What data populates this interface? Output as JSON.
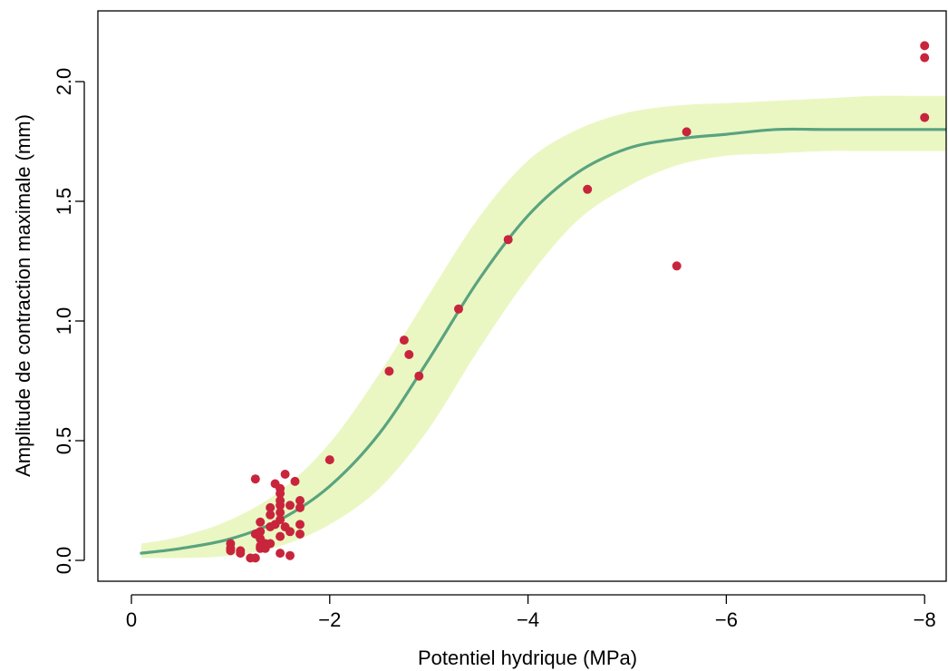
{
  "chart_data": {
    "type": "scatter",
    "title": "",
    "xlabel": "Potentiel hydrique (MPa)",
    "ylabel": "Amplitude de contraction maximale (mm)",
    "xlim": [
      0.3,
      -8.25
    ],
    "ylim": [
      -0.08,
      2.3
    ],
    "x_reversed": true,
    "x_ticks": [
      0,
      -2,
      -4,
      -6,
      -8
    ],
    "x_tick_labels": [
      "0",
      "−2",
      "−4",
      "−6",
      "−8"
    ],
    "y_ticks": [
      0.0,
      0.5,
      1.0,
      1.5,
      2.0
    ],
    "y_tick_labels": [
      "0.0",
      "0.5",
      "1.0",
      "1.5",
      "2.0"
    ],
    "grid": false,
    "legend": "none",
    "colors": {
      "points": "#c8243c",
      "curve": "#5aa37f",
      "band": "#eaf7c3",
      "axis": "#000000"
    },
    "points": [
      {
        "x": -1.0,
        "y": 0.07
      },
      {
        "x": -1.0,
        "y": 0.05
      },
      {
        "x": -1.0,
        "y": 0.04
      },
      {
        "x": -1.1,
        "y": 0.04
      },
      {
        "x": -1.1,
        "y": 0.03
      },
      {
        "x": -1.2,
        "y": 0.01
      },
      {
        "x": -1.25,
        "y": 0.01
      },
      {
        "x": -1.25,
        "y": 0.34
      },
      {
        "x": -1.25,
        "y": 0.11
      },
      {
        "x": -1.3,
        "y": 0.16
      },
      {
        "x": -1.3,
        "y": 0.12
      },
      {
        "x": -1.3,
        "y": 0.09
      },
      {
        "x": -1.3,
        "y": 0.06
      },
      {
        "x": -1.3,
        "y": 0.05
      },
      {
        "x": -1.35,
        "y": 0.07
      },
      {
        "x": -1.35,
        "y": 0.05
      },
      {
        "x": -1.4,
        "y": 0.22
      },
      {
        "x": -1.4,
        "y": 0.19
      },
      {
        "x": -1.4,
        "y": 0.14
      },
      {
        "x": -1.4,
        "y": 0.07
      },
      {
        "x": -1.45,
        "y": 0.32
      },
      {
        "x": -1.45,
        "y": 0.15
      },
      {
        "x": -1.5,
        "y": 0.3
      },
      {
        "x": -1.5,
        "y": 0.28
      },
      {
        "x": -1.5,
        "y": 0.25
      },
      {
        "x": -1.5,
        "y": 0.23
      },
      {
        "x": -1.5,
        "y": 0.2
      },
      {
        "x": -1.5,
        "y": 0.17
      },
      {
        "x": -1.5,
        "y": 0.1
      },
      {
        "x": -1.5,
        "y": 0.03
      },
      {
        "x": -1.55,
        "y": 0.36
      },
      {
        "x": -1.55,
        "y": 0.14
      },
      {
        "x": -1.6,
        "y": 0.23
      },
      {
        "x": -1.6,
        "y": 0.12
      },
      {
        "x": -1.6,
        "y": 0.02
      },
      {
        "x": -1.65,
        "y": 0.33
      },
      {
        "x": -1.7,
        "y": 0.25
      },
      {
        "x": -1.7,
        "y": 0.22
      },
      {
        "x": -1.7,
        "y": 0.15
      },
      {
        "x": -1.7,
        "y": 0.11
      },
      {
        "x": -2.0,
        "y": 0.42
      },
      {
        "x": -2.6,
        "y": 0.79
      },
      {
        "x": -2.75,
        "y": 0.92
      },
      {
        "x": -2.8,
        "y": 0.86
      },
      {
        "x": -2.9,
        "y": 0.77
      },
      {
        "x": -3.3,
        "y": 1.05
      },
      {
        "x": -3.8,
        "y": 1.34
      },
      {
        "x": -4.6,
        "y": 1.55
      },
      {
        "x": -5.5,
        "y": 1.23
      },
      {
        "x": -5.6,
        "y": 1.79
      },
      {
        "x": -8.0,
        "y": 2.15
      },
      {
        "x": -8.0,
        "y": 2.1
      },
      {
        "x": -8.0,
        "y": 1.85
      }
    ],
    "curve": {
      "x": [
        -0.1,
        -0.5,
        -1.0,
        -1.5,
        -2.0,
        -2.5,
        -3.0,
        -3.5,
        -4.0,
        -4.5,
        -5.0,
        -5.5,
        -6.0,
        -6.5,
        -7.0,
        -7.5,
        -8.0,
        -8.25
      ],
      "y": [
        0.03,
        0.05,
        0.09,
        0.17,
        0.31,
        0.53,
        0.84,
        1.17,
        1.44,
        1.62,
        1.72,
        1.76,
        1.78,
        1.8,
        1.8,
        1.8,
        1.8,
        1.8
      ]
    },
    "band": {
      "x": [
        -0.1,
        -0.5,
        -1.0,
        -1.5,
        -2.0,
        -2.5,
        -3.0,
        -3.5,
        -4.0,
        -4.5,
        -5.0,
        -5.5,
        -6.0,
        -6.5,
        -7.0,
        -7.5,
        -8.0,
        -8.25
      ],
      "lower": [
        0.01,
        0.01,
        0.02,
        0.06,
        0.15,
        0.3,
        0.55,
        0.88,
        1.18,
        1.42,
        1.56,
        1.65,
        1.69,
        1.7,
        1.71,
        1.71,
        1.71,
        1.71
      ],
      "upper": [
        0.07,
        0.1,
        0.17,
        0.29,
        0.49,
        0.78,
        1.11,
        1.43,
        1.67,
        1.8,
        1.87,
        1.9,
        1.91,
        1.92,
        1.93,
        1.94,
        1.94,
        1.94
      ]
    }
  }
}
